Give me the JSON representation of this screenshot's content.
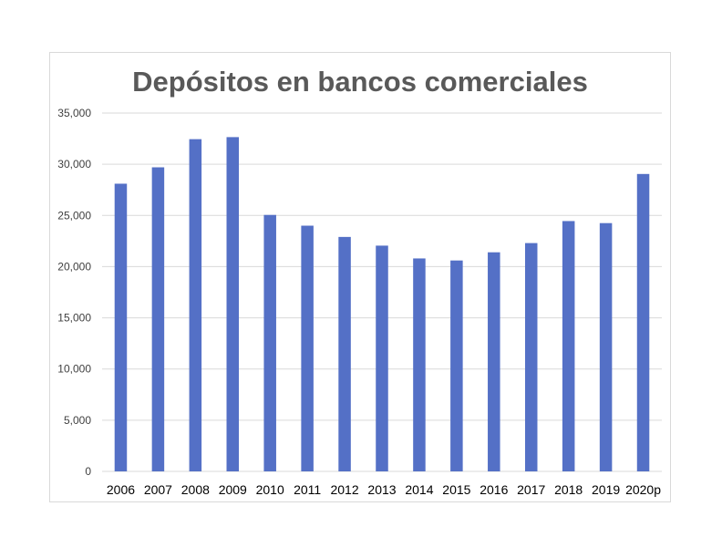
{
  "chart_data": {
    "type": "bar",
    "title": "Depósitos en bancos comerciales",
    "xlabel": "",
    "ylabel": "",
    "categories": [
      "2006",
      "2007",
      "2008",
      "2009",
      "2010",
      "2011",
      "2012",
      "2013",
      "2014",
      "2015",
      "2016",
      "2017",
      "2018",
      "2019",
      "2020p"
    ],
    "values": [
      28100,
      29700,
      32450,
      32650,
      25050,
      24000,
      22900,
      22050,
      20800,
      20600,
      21400,
      22300,
      24450,
      24250,
      29050
    ],
    "ylim": [
      0,
      35000
    ],
    "yticks": [
      0,
      5000,
      10000,
      15000,
      20000,
      25000,
      30000,
      35000
    ],
    "ytick_labels": [
      "0",
      "5,000",
      "10,000",
      "15,000",
      "20,000",
      "25,000",
      "30,000",
      "35,000"
    ],
    "grid": true,
    "legend": "none",
    "bar_color": "#5470c6"
  }
}
